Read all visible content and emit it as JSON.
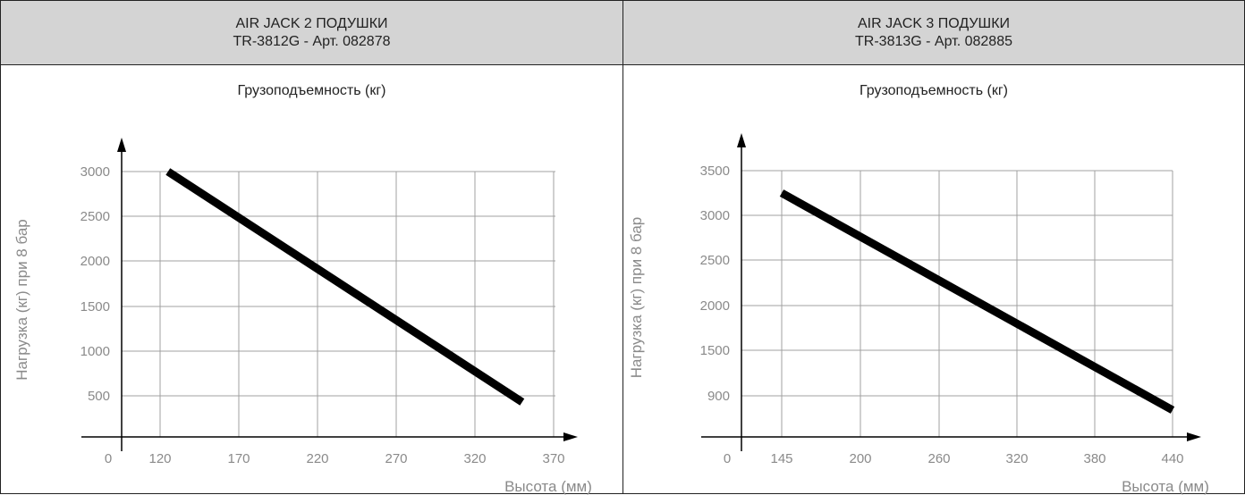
{
  "panels": [
    {
      "title": "AIR JACK 2 ПОДУШКИ",
      "model": "TR-3812G - Арт. 082878",
      "subtitle": "Грузоподъемность (кг)"
    },
    {
      "title": "AIR JACK 3 ПОДУШКИ",
      "model": "TR-3813G - Арт. 082885",
      "subtitle": "Грузоподъемность (кг)"
    }
  ],
  "chart_data": [
    {
      "type": "line",
      "title": "Грузоподъемность (кг)",
      "xlabel": "Высота (мм)",
      "ylabel": "Нагрузка (кг) при 8 бар",
      "x_origin_label": "0",
      "x_ticks": [
        "120",
        "170",
        "220",
        "270",
        "320",
        "370"
      ],
      "y_ticks": [
        "500",
        "1000",
        "1500",
        "2000",
        "2500",
        "3000"
      ],
      "x_tick_values": [
        120,
        170,
        220,
        270,
        320,
        370
      ],
      "y_tick_values": [
        500,
        1000,
        1500,
        2000,
        2500,
        3000
      ],
      "series": [
        {
          "x": [
            125,
            350
          ],
          "y": [
            3000,
            420
          ]
        }
      ],
      "grid": true,
      "line_color": "#000000"
    },
    {
      "type": "line",
      "title": "Грузоподъемность (кг)",
      "xlabel": "Высота (мм)",
      "ylabel": "Нагрузка (кг) при 8 бар",
      "x_origin_label": "0",
      "x_ticks": [
        "145",
        "200",
        "260",
        "320",
        "380",
        "440"
      ],
      "y_ticks": [
        "900",
        "1500",
        "2000",
        "2500",
        "3000",
        "3500"
      ],
      "x_tick_values": [
        145,
        200,
        260,
        320,
        380,
        440
      ],
      "y_tick_values": [
        900,
        1500,
        2000,
        2500,
        3000,
        3500
      ],
      "series": [
        {
          "x": [
            145,
            440
          ],
          "y": [
            3250,
            820
          ]
        }
      ],
      "grid": true,
      "line_color": "#000000"
    }
  ]
}
